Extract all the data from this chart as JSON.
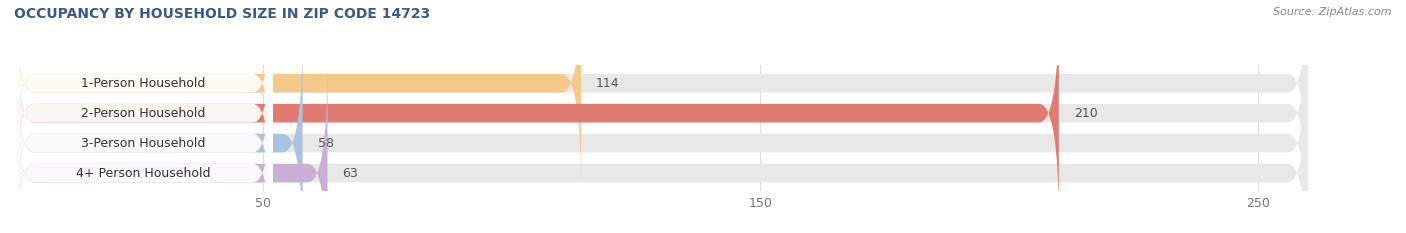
{
  "title": "OCCUPANCY BY HOUSEHOLD SIZE IN ZIP CODE 14723",
  "source": "Source: ZipAtlas.com",
  "categories": [
    "1-Person Household",
    "2-Person Household",
    "3-Person Household",
    "4+ Person Household"
  ],
  "values": [
    114,
    210,
    58,
    63
  ],
  "bar_colors": [
    "#f5c98a",
    "#e07b72",
    "#aac4e0",
    "#c9afd4"
  ],
  "bar_bg_color": "#e8e8e8",
  "xlim": [
    0,
    260
  ],
  "xticks": [
    50,
    150,
    250
  ],
  "figsize": [
    14.06,
    2.33
  ],
  "dpi": 100,
  "title_fontsize": 10,
  "label_fontsize": 9,
  "value_fontsize": 9,
  "source_fontsize": 8,
  "bar_height": 0.62,
  "background_color": "#ffffff",
  "title_color": "#3a5a8a",
  "label_color": "#333333",
  "value_color": "#555555",
  "source_color": "#888888",
  "grid_color": "#dddddd",
  "tick_color": "#777777"
}
